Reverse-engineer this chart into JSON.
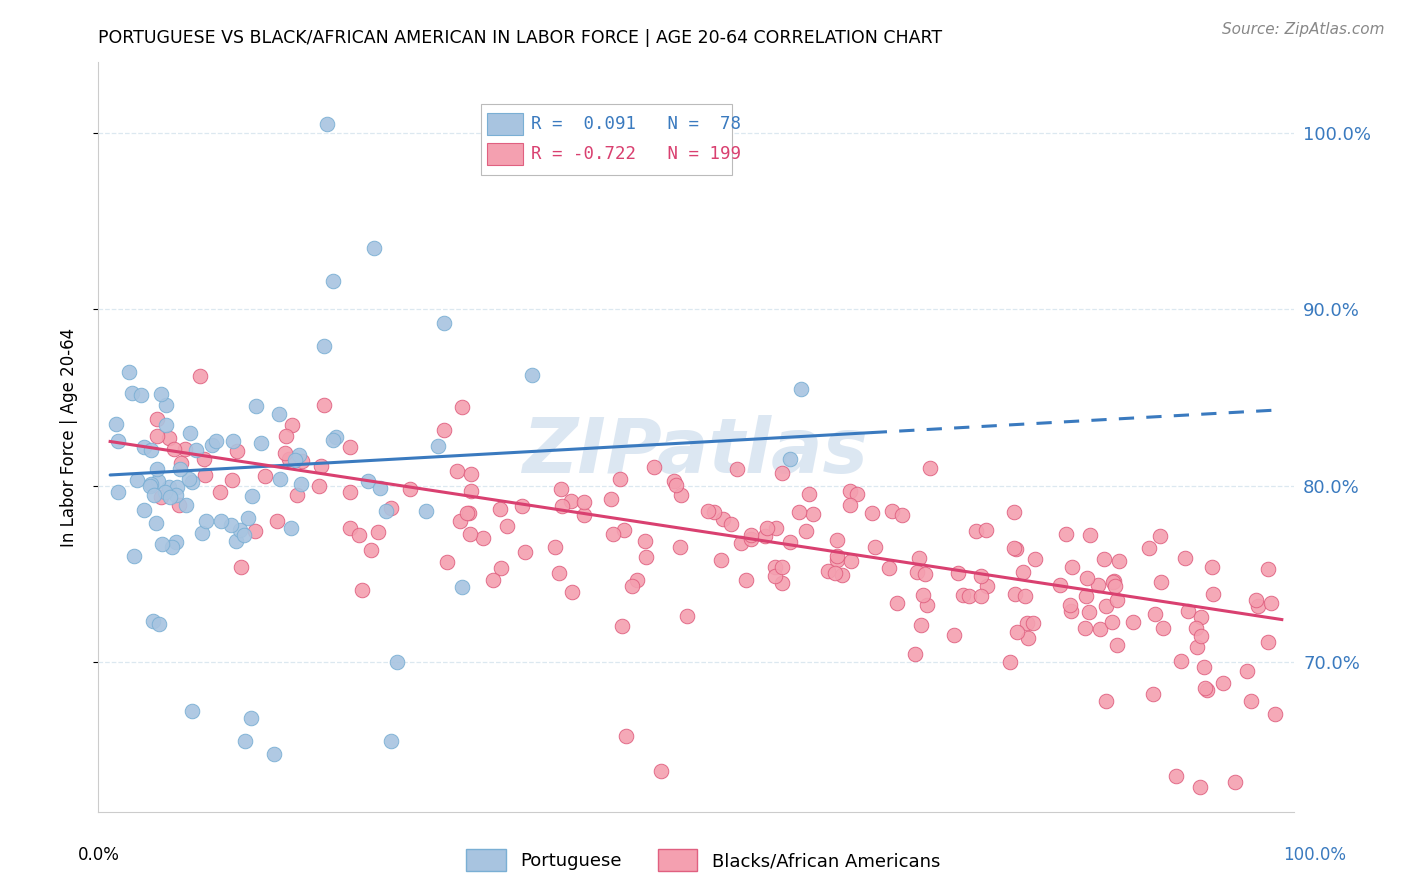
{
  "title": "PORTUGUESE VS BLACK/AFRICAN AMERICAN IN LABOR FORCE | AGE 20-64 CORRELATION CHART",
  "source": "Source: ZipAtlas.com",
  "ylabel": "In Labor Force | Age 20-64",
  "ytick_positions": [
    1.0,
    0.9,
    0.8,
    0.7
  ],
  "xlim": [
    -0.01,
    1.01
  ],
  "ylim": [
    0.615,
    1.04
  ],
  "portuguese_color": "#a8c4e0",
  "portuguese_edge": "#7aafd4",
  "pink_color": "#f4a0b0",
  "pink_edge": "#e06080",
  "blue_line_color": "#3a7abf",
  "pink_line_color": "#d94070",
  "watermark": "ZIPatlas",
  "watermark_color": "#c0d4e8",
  "portuguese_R": 0.091,
  "portuguese_N": 78,
  "pink_R": -0.722,
  "pink_N": 199,
  "background_color": "#ffffff",
  "grid_color": "#dce8f0",
  "blue_line_start_y": 0.806,
  "blue_line_end_y": 0.843,
  "pink_line_start_y": 0.825,
  "pink_line_end_y": 0.724
}
